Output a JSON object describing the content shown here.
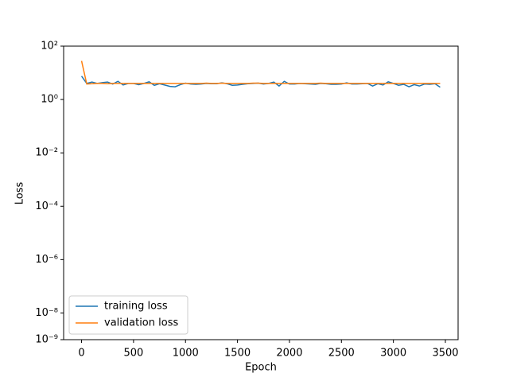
{
  "chart_data": {
    "type": "line",
    "xlabel": "Epoch",
    "ylabel": "Loss",
    "yscale": "log",
    "x": [
      0,
      50,
      100,
      150,
      200,
      250,
      300,
      350,
      400,
      450,
      500,
      550,
      600,
      650,
      700,
      750,
      800,
      850,
      900,
      950,
      1000,
      1050,
      1100,
      1150,
      1200,
      1250,
      1300,
      1350,
      1400,
      1450,
      1500,
      1550,
      1600,
      1650,
      1700,
      1750,
      1800,
      1850,
      1900,
      1950,
      2000,
      2050,
      2100,
      2150,
      2200,
      2250,
      2300,
      2350,
      2400,
      2450,
      2500,
      2550,
      2600,
      2650,
      2700,
      2750,
      2800,
      2850,
      2900,
      2950,
      3000,
      3050,
      3100,
      3150,
      3200,
      3250,
      3300,
      3350,
      3400,
      3450
    ],
    "series": [
      {
        "name": "training loss",
        "color": "#1f77b4",
        "values": [
          7.5,
          4,
          4.5,
          4,
          4.3,
          4.5,
          3.8,
          4.8,
          3.5,
          4,
          4,
          3.6,
          4,
          4.6,
          3.4,
          3.9,
          3.5,
          3.1,
          3,
          3.6,
          4.1,
          3.8,
          3.7,
          3.8,
          4,
          3.9,
          3.9,
          4.2,
          3.9,
          3.4,
          3.5,
          3.7,
          3.9,
          4,
          4.1,
          3.8,
          4,
          4.5,
          3.2,
          4.8,
          3.8,
          3.8,
          4,
          3.9,
          3.8,
          3.7,
          4,
          3.9,
          3.7,
          3.7,
          3.8,
          4.2,
          3.8,
          3.8,
          3.9,
          4,
          3.2,
          3.9,
          3.5,
          4.6,
          4,
          3.4,
          3.7,
          3,
          3.6,
          3.2,
          3.8,
          3.7,
          3.9,
          2.9
        ]
      },
      {
        "name": "validation loss",
        "color": "#ff7f0e",
        "values": [
          28,
          3.8,
          3.9,
          4,
          4,
          3.9,
          4,
          4,
          4,
          4,
          4,
          4,
          4,
          4,
          4,
          4,
          4,
          4,
          4,
          4,
          4,
          4,
          4,
          4,
          4.1,
          4,
          4,
          4.1,
          4,
          4,
          4,
          4,
          4,
          4.1,
          4.1,
          4,
          4,
          4,
          4,
          4,
          4,
          4,
          4,
          4,
          4,
          4,
          4.1,
          4,
          4,
          4,
          4,
          4,
          4,
          4,
          4,
          4,
          4,
          4,
          4,
          4,
          4,
          4,
          4,
          4,
          4,
          4,
          4,
          4,
          4,
          4
        ]
      }
    ],
    "xlim": [
      -172.5,
      3622.5
    ],
    "xticks": [
      0,
      500,
      1000,
      1500,
      2000,
      2500,
      3000,
      3500
    ],
    "ylim": [
      1e-09,
      100
    ],
    "yticks": [
      {
        "value": 1e-09,
        "label": "10⁻⁹"
      },
      {
        "value": 1e-08,
        "label": "10⁻⁸"
      },
      {
        "value": 1e-06,
        "label": "10⁻⁶"
      },
      {
        "value": 0.0001,
        "label": "10⁻⁴"
      },
      {
        "value": 0.01,
        "label": "10⁻²"
      },
      {
        "value": 1,
        "label": "10⁰"
      },
      {
        "value": 100,
        "label": "10²"
      }
    ],
    "legend": "lower left",
    "grid": false
  }
}
